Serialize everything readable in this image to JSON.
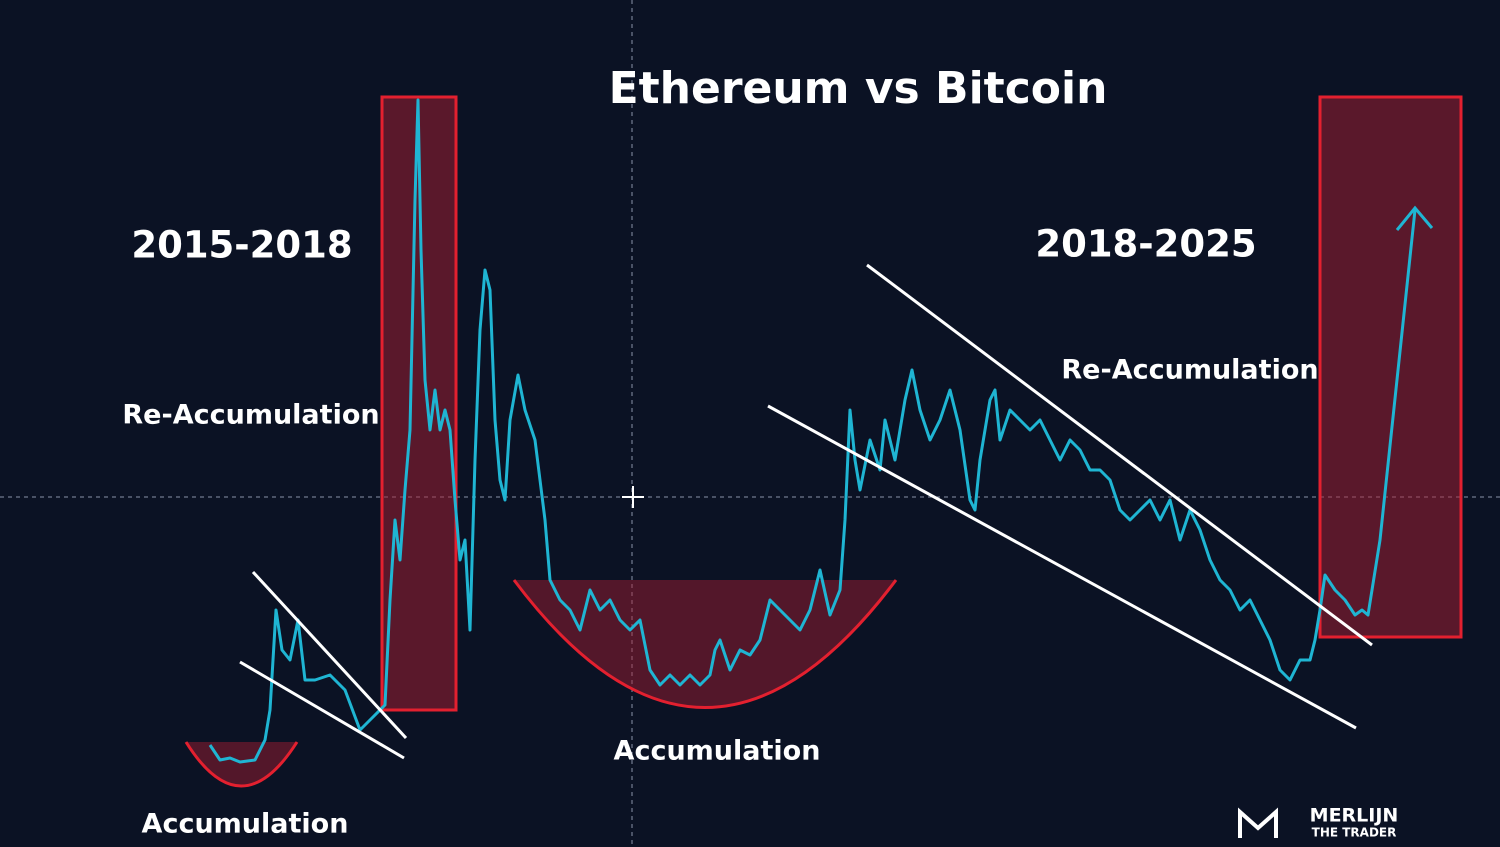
{
  "chart_data": {
    "type": "line",
    "title": "Ethereum vs Bitcoin",
    "annotations": {
      "period_left": "2015-2018",
      "period_right": "2018-2025",
      "reaccumulation_left": "Re-Accumulation",
      "reaccumulation_right": "Re-Accumulation",
      "accumulation_left": "Accumulation",
      "accumulation_middle": "Accumulation"
    },
    "logo": {
      "name": "MERLIJN",
      "tagline": "THE TRADER"
    }
  }
}
